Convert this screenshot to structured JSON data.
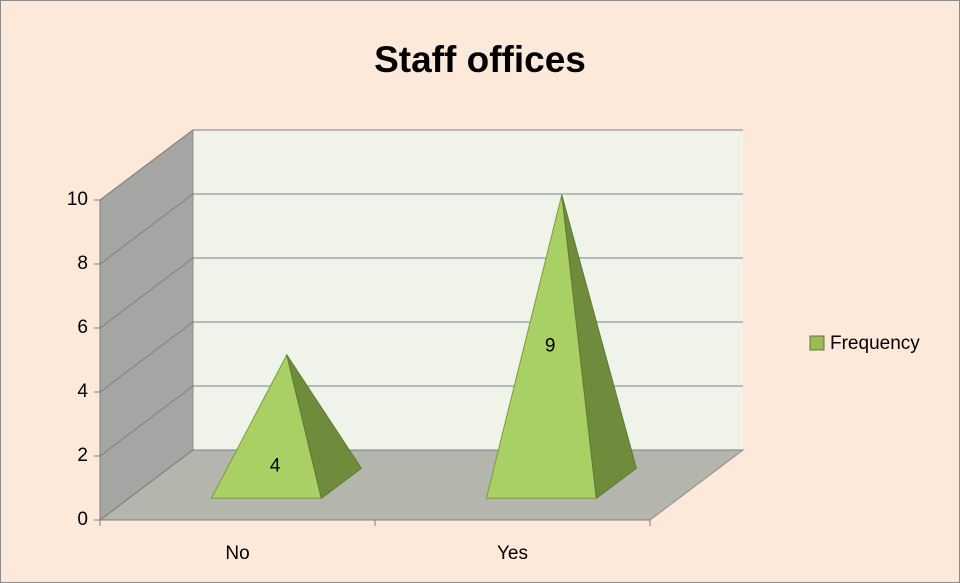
{
  "chart_data": {
    "type": "pyramid3d",
    "title": "Staff offices",
    "categories": [
      "No",
      "Yes"
    ],
    "series": [
      {
        "name": "Frequency",
        "color": "#9bbb59",
        "values": [
          4,
          9
        ]
      }
    ],
    "ylim": [
      0,
      10
    ],
    "yticks": [
      0,
      2,
      4,
      6,
      8,
      10
    ],
    "grid": true,
    "legend": "right"
  }
}
